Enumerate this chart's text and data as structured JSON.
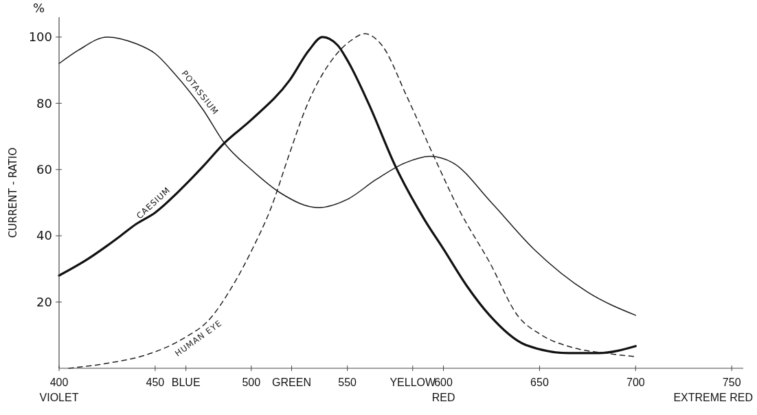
{
  "chart_data": {
    "type": "line",
    "ylabel": "CURRENT - RATIO",
    "annotations": [
      "%",
      "EXTREME RED"
    ],
    "xlim": [
      400,
      756
    ],
    "ylim": [
      0,
      106
    ],
    "xticks": [
      {
        "value": 400,
        "label": "400\nVIOLET"
      },
      450,
      {
        "value": 466,
        "label": "BLUE"
      },
      500,
      {
        "value": 521,
        "label": "GREEN"
      },
      550,
      {
        "value": 584,
        "label": "YELLOW"
      },
      {
        "value": 600,
        "label": "600\nRED"
      },
      650,
      700,
      750
    ],
    "yticks": [
      20,
      40,
      60,
      80,
      100
    ],
    "grid": false,
    "marker": "none",
    "series": [
      {
        "name": "POTASSIUM",
        "color": "#1a1a1a",
        "line_style": "solid",
        "x": [
          400,
          410,
          425,
          440,
          450,
          460,
          475,
          486,
          500,
          515,
          535,
          550,
          565,
          580,
          593,
          605,
          625,
          647,
          675,
          700
        ],
        "values": [
          92,
          96,
          100,
          98,
          95,
          89,
          78,
          68,
          60,
          53,
          48.5,
          51,
          57,
          62,
          64,
          62,
          50,
          36,
          23,
          16
        ]
      },
      {
        "name": "CAESIUM",
        "color": "#111111",
        "line_style": "solid",
        "x": [
          400,
          415,
          425,
          432,
          440,
          450,
          465,
          475,
          486,
          500,
          520,
          530,
          537,
          545,
          550,
          561,
          575,
          590,
          600,
          612,
          624,
          643,
          665,
          681,
          700
        ],
        "values": [
          28,
          33,
          37,
          40,
          43.5,
          47,
          55,
          61,
          68,
          75,
          87,
          96,
          100,
          97.5,
          93,
          80,
          61,
          45,
          36,
          25,
          16,
          7,
          4.6,
          4.6,
          6.7
        ]
      },
      {
        "name": "HUMAN EYE",
        "color": "#222222",
        "line_style": "dashed",
        "x": [
          405,
          425,
          445,
          460,
          467,
          477,
          490,
          501,
          510,
          520,
          528,
          544,
          552,
          559,
          568,
          581,
          595,
          608,
          624,
          639,
          650,
          669,
          685,
          700
        ],
        "values": [
          0,
          1.5,
          4,
          7.5,
          9.8,
          14,
          24.6,
          36.5,
          48,
          65,
          78,
          94.6,
          99,
          101,
          97.5,
          82,
          64,
          48,
          32,
          15.6,
          10.4,
          6,
          4.5,
          3.5
        ]
      }
    ]
  }
}
